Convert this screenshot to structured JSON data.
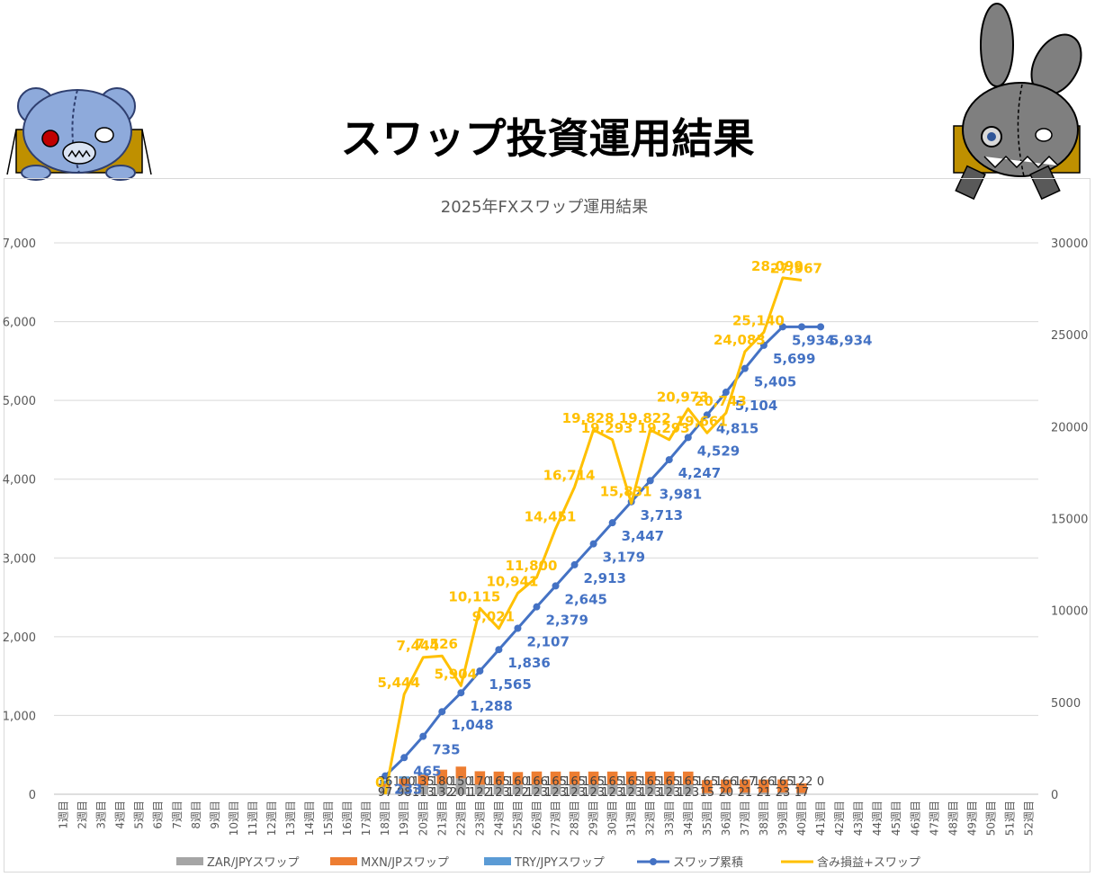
{
  "page": {
    "title": "スワップ投資運用結果"
  },
  "colors": {
    "zar": "#a5a5a5",
    "mxn": "#ed7d31",
    "try": "#5b9bd5",
    "cumulative": "#4472c4",
    "unrealized": "#ffc000",
    "grid": "#d9d9d9",
    "axis_text": "#595959"
  },
  "chart_data": {
    "type": "bar",
    "title": "2025年FXスワップ運用結果",
    "categories": [
      "1週目",
      "2週目",
      "3週目",
      "4週目",
      "5週目",
      "6週目",
      "7週目",
      "8週目",
      "9週目",
      "10週目",
      "11週目",
      "12週目",
      "13週目",
      "14週目",
      "15週目",
      "16週目",
      "17週目",
      "18週目",
      "19週目",
      "20週目",
      "21週目",
      "22週目",
      "23週目",
      "24週目",
      "25週目",
      "26週目",
      "27週目",
      "28週目",
      "29週目",
      "30週目",
      "31週目",
      "32週目",
      "33週目",
      "34週目",
      "35週目",
      "36週目",
      "37週目",
      "38週目",
      "39週目",
      "40週目",
      "41週目",
      "42週目",
      "43週目",
      "44週目",
      "45週目",
      "46週目",
      "47週目",
      "48週目",
      "49週目",
      "50週目",
      "51週目",
      "52週目"
    ],
    "y_left": {
      "min": 0,
      "max": 7000,
      "ticks": [
        "0",
        "1,000",
        "2,000",
        "3,000",
        "4,000",
        "5,000",
        "6,000",
        "7,000"
      ]
    },
    "y_right": {
      "min": 0,
      "max": 30000,
      "ticks": [
        "0",
        "5000",
        "10000",
        "15000",
        "20000",
        "25000",
        "30000"
      ]
    },
    "grid": true,
    "legend_position": "bottom",
    "series": [
      {
        "name": "ZAR/JPYスワップ",
        "type": "bar",
        "axis": "left",
        "values": [
          null,
          null,
          null,
          null,
          null,
          null,
          null,
          null,
          null,
          null,
          null,
          null,
          null,
          null,
          null,
          null,
          null,
          97,
          98,
          113,
          132,
          201,
          122,
          123,
          122,
          123,
          123,
          123,
          123,
          123,
          123,
          123,
          123,
          123,
          15,
          20,
          21,
          21,
          23,
          17,
          null,
          null,
          null,
          null,
          null,
          null,
          null,
          null,
          null,
          null,
          null,
          null
        ],
        "labels": [
          "",
          "",
          "",
          "",
          "",
          "",
          "",
          "",
          "",
          "",
          "",
          "",
          "",
          "",
          "",
          "",
          "",
          "97",
          "98",
          "113",
          "132",
          "201",
          "122",
          "123",
          "122",
          "123",
          "123",
          "123",
          "123",
          "123",
          "123",
          "123",
          "123",
          "123",
          "15",
          "20",
          "21",
          "21",
          "23",
          "17",
          "",
          "",
          "",
          "",
          "",
          "",
          "",
          "",
          "",
          "",
          "",
          ""
        ]
      },
      {
        "name": "MXN/JPスワップ",
        "type": "bar",
        "axis": "left",
        "values": [
          null,
          null,
          null,
          null,
          null,
          null,
          null,
          null,
          null,
          null,
          null,
          null,
          null,
          null,
          null,
          null,
          null,
          36,
          100,
          135,
          180,
          150,
          170,
          165,
          160,
          166,
          165,
          165,
          165,
          165,
          165,
          165,
          165,
          165,
          165,
          166,
          167,
          166,
          165,
          122,
          0,
          null,
          null,
          null,
          null,
          null,
          null,
          null,
          null,
          null,
          null,
          null
        ],
        "labels": [
          "",
          "",
          "",
          "",
          "",
          "",
          "",
          "",
          "",
          "",
          "",
          "",
          "",
          "",
          "",
          "",
          "",
          "36",
          "100",
          "135",
          "180",
          "150",
          "170",
          "165",
          "160",
          "166",
          "165",
          "165",
          "165",
          "165",
          "165",
          "165",
          "165",
          "165",
          "165",
          "166",
          "167",
          "166",
          "165",
          "122",
          "0",
          "",
          "",
          "",
          "",
          "",
          "",
          "",
          "",
          "",
          "",
          ""
        ]
      },
      {
        "name": "TRY/JPYスワップ",
        "type": "bar",
        "axis": "left",
        "values": [
          null,
          null,
          null,
          null,
          null,
          null,
          null,
          null,
          null,
          null,
          null,
          null,
          null,
          null,
          null,
          null,
          null,
          43,
          29,
          23,
          0,
          0,
          0,
          0,
          0,
          0,
          0,
          0,
          0,
          0,
          0,
          0,
          0,
          0,
          0,
          0,
          0,
          0,
          0,
          0,
          0,
          null,
          null,
          null,
          null,
          null,
          null,
          null,
          null,
          null,
          null,
          null
        ],
        "labels": [
          "",
          "",
          "",
          "",
          "",
          "",
          "",
          "",
          "",
          "",
          "",
          "",
          "",
          "",
          "",
          "",
          "",
          "",
          "",
          "",
          "",
          "",
          "",
          "",
          "",
          "",
          "",
          "",
          "",
          "",
          "",
          "",
          "",
          "",
          "",
          "",
          "",
          "",
          "",
          "",
          "",
          "",
          "",
          "",
          "",
          "",
          "",
          "",
          "",
          "",
          "",
          ""
        ]
      },
      {
        "name": "スワップ累積",
        "type": "line",
        "axis": "left",
        "values": [
          null,
          null,
          null,
          null,
          null,
          null,
          null,
          null,
          null,
          null,
          null,
          null,
          null,
          null,
          null,
          null,
          null,
          233,
          465,
          735,
          1048,
          1288,
          1565,
          1836,
          2107,
          2379,
          2645,
          2913,
          3179,
          3447,
          3713,
          3981,
          4247,
          4529,
          4815,
          5104,
          5405,
          5699,
          5934,
          5934,
          5934,
          null,
          null,
          null,
          null,
          null,
          null,
          null,
          null,
          null,
          null,
          null
        ],
        "labels": [
          "",
          "",
          "",
          "",
          "",
          "",
          "",
          "",
          "",
          "",
          "",
          "",
          "",
          "",
          "",
          "",
          "",
          "233",
          "465",
          "735",
          "1,048",
          "1,288",
          "1,565",
          "1,836",
          "2,107",
          "2,379",
          "2,645",
          "2,913",
          "3,179",
          "3,447",
          "3,713",
          "3,981",
          "4,247",
          "4,529",
          "4,815",
          "5,104",
          "5,405",
          "5,699",
          "5,934",
          "",
          "5,934",
          "",
          "",
          "",
          "",
          "",
          "",
          "",
          "",
          "",
          "",
          ""
        ]
      },
      {
        "name": "含み損益+スワップ",
        "type": "line",
        "axis": "right",
        "values": [
          null,
          null,
          null,
          null,
          null,
          null,
          null,
          null,
          null,
          null,
          null,
          null,
          null,
          null,
          null,
          null,
          null,
          0,
          5444,
          7444,
          7526,
          5904,
          10115,
          9021,
          10941,
          11800,
          14451,
          16714,
          19828,
          19293,
          15831,
          19822,
          19293,
          20973,
          19661,
          20743,
          24083,
          25140,
          28099,
          27967,
          null,
          null,
          null,
          null,
          null,
          null,
          null,
          null,
          null,
          null,
          null,
          null
        ],
        "labels": [
          "",
          "",
          "",
          "",
          "",
          "",
          "",
          "",
          "",
          "",
          "",
          "",
          "",
          "",
          "",
          "",
          "",
          "0",
          "5,444",
          "7,444",
          "7,526",
          "5,904",
          "10,115",
          "9,021",
          "10,941",
          "11,800",
          "14,451",
          "16,714",
          "19,828",
          "19,293",
          "15,831",
          "19,822",
          "19,293",
          "20,973",
          "19,661",
          "20,743",
          "24,083",
          "25,140",
          "28,099",
          "27,967",
          "",
          "",
          "",
          "",
          "",
          "",
          "",
          "",
          "",
          "",
          "",
          ""
        ]
      }
    ]
  }
}
